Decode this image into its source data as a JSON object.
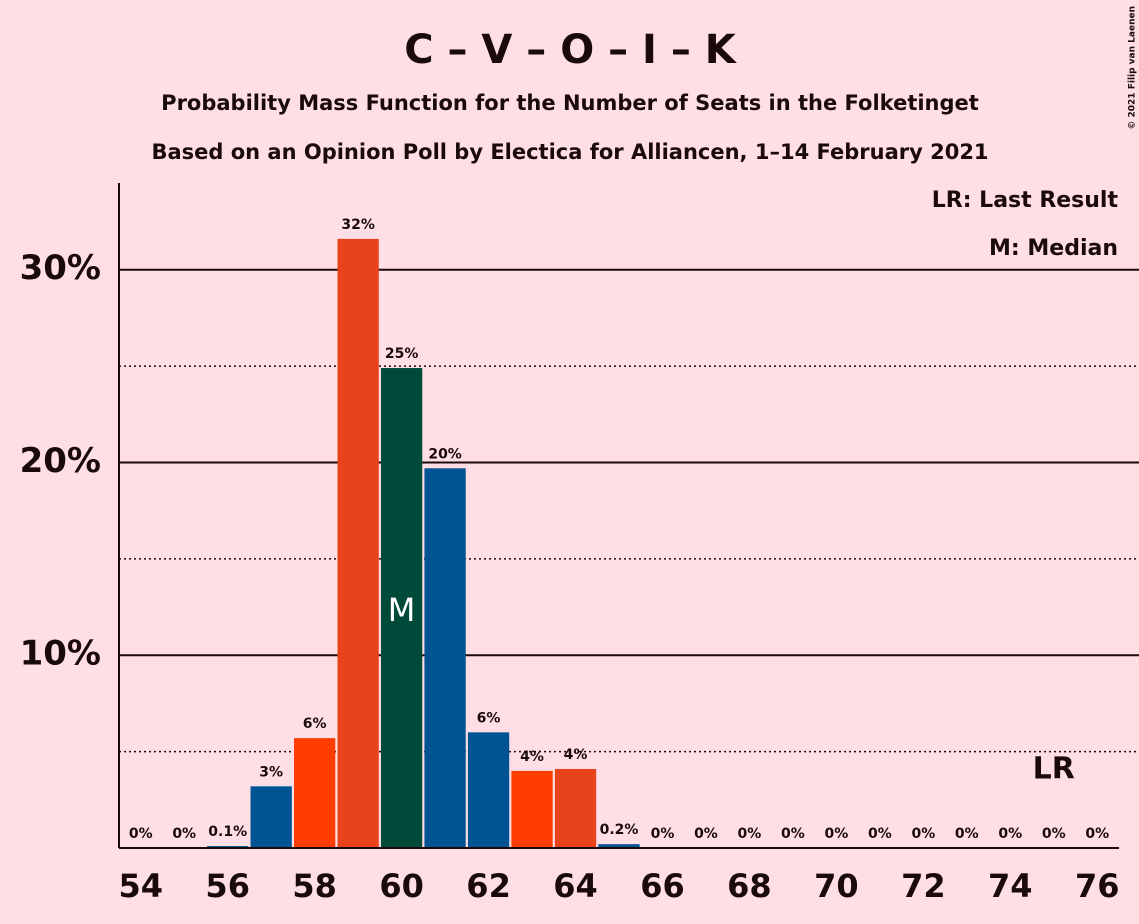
{
  "chart_data": {
    "type": "bar",
    "title": "C – V – O – I – K",
    "subtitle": "Probability Mass Function for the Number of Seats in the Folketinget",
    "subtitle2": "Based on an Opinion Poll by Electica for Alliancen, 1–14 February 2021",
    "copyright": "© 2021 Filip van Laenen",
    "legend": [
      "LR: Last Result",
      "M: Median"
    ],
    "median": 60,
    "median_label": "M",
    "last_result": 75,
    "last_result_label": "LR",
    "x": [
      54,
      55,
      56,
      57,
      58,
      59,
      60,
      61,
      62,
      63,
      64,
      65,
      66,
      67,
      68,
      69,
      70,
      71,
      72,
      73,
      74,
      75,
      76
    ],
    "values": [
      0,
      0,
      0.1,
      3.2,
      5.7,
      31.6,
      24.9,
      19.7,
      6.0,
      4.0,
      4.1,
      0.2,
      0,
      0,
      0,
      0,
      0,
      0,
      0,
      0,
      0,
      0,
      0
    ],
    "value_labels": [
      "0%",
      "0%",
      "0.1%",
      "3%",
      "6%",
      "32%",
      "25%",
      "20%",
      "6%",
      "4%",
      "4%",
      "0.2%",
      "0%",
      "0%",
      "0%",
      "0%",
      "0%",
      "0%",
      "0%",
      "0%",
      "0%",
      "0%",
      "0%"
    ],
    "colors": [
      "#005493",
      "#ff3d00",
      "#005493",
      "#005493",
      "#ff3d00",
      "#e8431a",
      "#004a3a",
      "#005493",
      "#005493",
      "#ff3d00",
      "#e8431a",
      "#005493",
      "#005493",
      "#005493",
      "#005493",
      "#005493",
      "#005493",
      "#005493",
      "#005493",
      "#005493",
      "#005493",
      "#005493",
      "#005493"
    ],
    "xlim": [
      53.5,
      76.5
    ],
    "xticks": [
      54,
      56,
      58,
      60,
      62,
      64,
      66,
      68,
      70,
      72,
      74,
      76
    ],
    "ylim": [
      0,
      34.5
    ],
    "yticks": [
      {
        "value": 10,
        "label": "10%"
      },
      {
        "value": 20,
        "label": "20%"
      },
      {
        "value": 30,
        "label": "30%"
      }
    ],
    "minor_grid": [
      5,
      15,
      25
    ],
    "grid": true
  }
}
